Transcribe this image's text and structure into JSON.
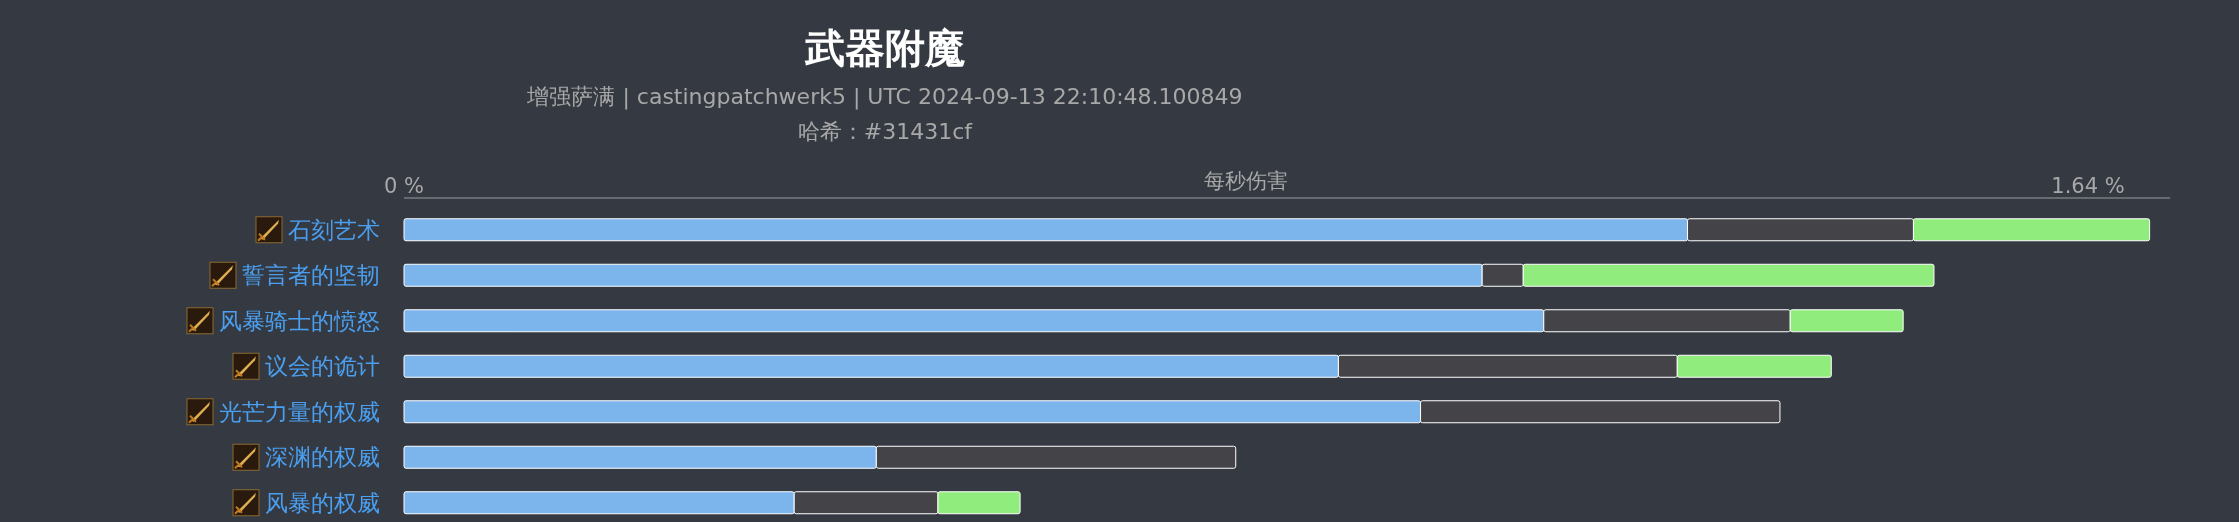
{
  "chart_data": {
    "type": "bar",
    "orientation": "horizontal",
    "stacked": true,
    "title": "武器附魔",
    "subtitle": "增强萨满 | castingpatchwerk5 | UTC 2024-09-13 22:10:48.100849",
    "annotations": [
      "哈希：#31431cf"
    ],
    "xlabel": "每秒伤害",
    "categories": [
      "石刻艺术",
      "誓言者的坚韧",
      "风暴骑士的愤怒",
      "议会的诡计",
      "光芒力量的权威",
      "深渊的权威",
      "风暴的权威"
    ],
    "series": [
      {
        "color": "#7cb5ec",
        "values": [
          1.25,
          1.05,
          1.11,
          0.91,
          0.99,
          0.46,
          0.38
        ]
      },
      {
        "color": "#434348",
        "values": [
          0.22,
          0.04,
          0.24,
          0.33,
          0.35,
          0.35,
          0.14
        ]
      },
      {
        "color": "#90ed7d",
        "values": [
          0.23,
          0.4,
          0.11,
          0.15,
          null,
          null,
          0.08
        ]
      }
    ],
    "xlim": [
      0,
      1.72
    ],
    "xticks": [
      {
        "value": 0,
        "label": "0 %"
      },
      {
        "value": 1.64,
        "label": "1.64 %"
      }
    ],
    "grid": false
  }
}
